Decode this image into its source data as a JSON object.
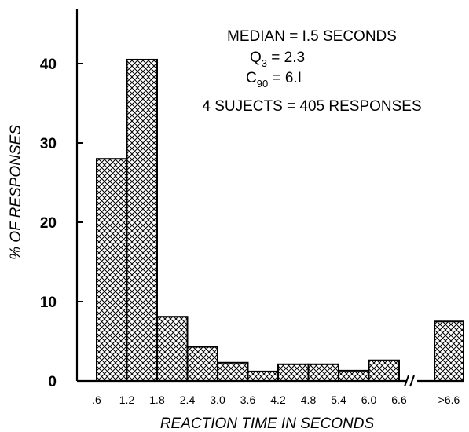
{
  "chart_data": {
    "type": "bar",
    "xlabel": "REACTION TIME IN SECONDS",
    "ylabel": "% OF RESPONSES",
    "ylim": [
      0,
      45
    ],
    "y_ticks": [
      "0",
      "10",
      "20",
      "30",
      "40"
    ],
    "x_tick_labels": [
      ".6",
      "1.2",
      "1.8",
      "2.4",
      "3.0",
      "3.6",
      "4.2",
      "4.8",
      "5.4",
      "6.0",
      "6.6",
      ">6.6"
    ],
    "categories": [
      ".6-1.2",
      "1.2-1.8",
      "1.8-2.4",
      "2.4-3.0",
      "3.0-3.6",
      "3.6-4.2",
      "4.2-4.8",
      "4.8-5.4",
      "5.4-6.0",
      "6.0-6.6",
      ">6.6"
    ],
    "values": [
      28,
      40.5,
      8.1,
      4.3,
      2.3,
      1.2,
      2.1,
      2.1,
      1.3,
      2.6,
      7.5
    ],
    "x_axis_break_before_last": true,
    "grid": false,
    "fill_pattern": "crosshatch",
    "annotations": {
      "median": "MEDIAN = I.5 SECONDS",
      "q3_letter": "Q",
      "q3_sub": "3",
      "q3_value": " = 2.3",
      "c90_letter": "C",
      "c90_sub": "90",
      "c90_value": " = 6.I",
      "subjects": "4 SUJECTS = 405 RESPONSES"
    }
  }
}
